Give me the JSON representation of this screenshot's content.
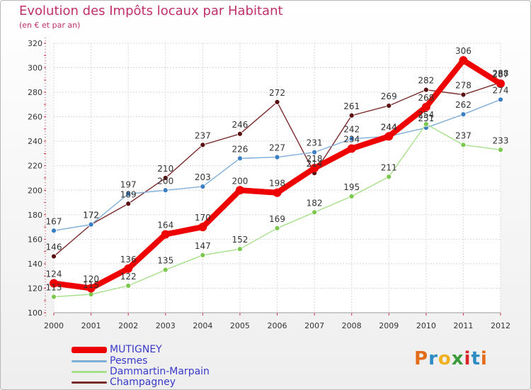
{
  "header": {
    "title": "Evolution des Impôts locaux par Habitant",
    "subtitle": "(en € et par an)"
  },
  "logo": {
    "text": "Proxiti",
    "colors": [
      "#e36c1a",
      "#2e8bc4",
      "#f3b01d",
      "#3a9b3a",
      "#d8262b",
      "#2e8bc4",
      "#e36c1a"
    ]
  },
  "chart_data": {
    "type": "line",
    "title": "Evolution des Impôts locaux par Habitant",
    "subtitle": "(en € et par an)",
    "xlabel": "",
    "ylabel": "",
    "x": [
      "2000",
      "2001",
      "2002",
      "2003",
      "2004",
      "2005",
      "2006",
      "2007",
      "2008",
      "2009",
      "2010",
      "2011",
      "2012"
    ],
    "yticks": [
      "100",
      "120",
      "140",
      "160",
      "180",
      "200",
      "220",
      "240",
      "260",
      "280",
      "300",
      "320"
    ],
    "ylim": [
      100,
      320
    ],
    "grid": true,
    "legend_position": "bottom-left",
    "series": [
      {
        "name": "Champagney",
        "color": "#7a2a2a",
        "marker": "#5a1010",
        "values": [
          146,
          172,
          189,
          210,
          237,
          246,
          272,
          214,
          261,
          269,
          282,
          278,
          288
        ],
        "labels": [
          "146",
          "172",
          "189",
          "210",
          "237",
          "246",
          "272",
          "214",
          "261",
          "269",
          "282",
          "278",
          "288"
        ]
      },
      {
        "name": "Pesmes",
        "color": "#7faed8",
        "marker": "#3a7ec4",
        "values": [
          167,
          172,
          197,
          200,
          203,
          226,
          227,
          231,
          242,
          244,
          251,
          262,
          274
        ],
        "labels": [
          "167",
          "172",
          "197",
          "200",
          "203",
          "226",
          "227",
          "231",
          "242",
          "244",
          "251",
          "262",
          "274"
        ]
      },
      {
        "name": "Dammartin-Marpain",
        "color": "#a6e08a",
        "marker": "#7cc84e",
        "values": [
          113,
          115,
          122,
          135,
          147,
          152,
          169,
          182,
          195,
          211,
          254,
          237,
          233
        ],
        "labels": [
          "113",
          "115",
          "122",
          "135",
          "147",
          "152",
          "169",
          "182",
          "195",
          "211",
          "254",
          "237",
          "233"
        ]
      },
      {
        "name": "MUTIGNEY",
        "color": "#ee0000",
        "marker": "#ee0000",
        "values": [
          124,
          120,
          136,
          164,
          170,
          200,
          198,
          218,
          234,
          244,
          268,
          306,
          287
        ],
        "labels": [
          "124",
          "120",
          "136",
          "164",
          "170",
          "200",
          "198",
          "218",
          "234",
          "244",
          "268",
          "306",
          "287"
        ]
      }
    ]
  },
  "legend": [
    {
      "name": "MUTIGNEY",
      "color": "#ee0000"
    },
    {
      "name": "Pesmes",
      "color": "#7faed8"
    },
    {
      "name": "Dammartin-Marpain",
      "color": "#a6e08a"
    },
    {
      "name": "Champagney",
      "color": "#7a2a2a"
    }
  ]
}
